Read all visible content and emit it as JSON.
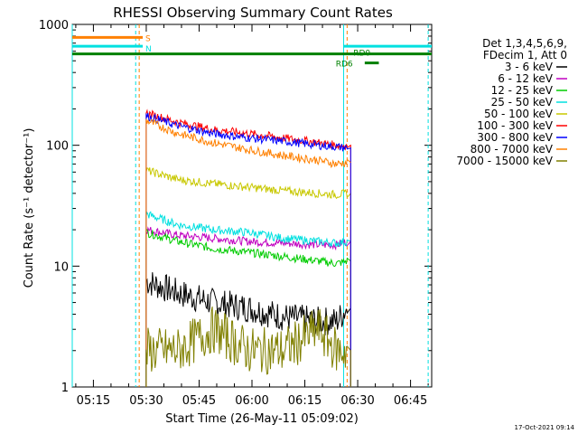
{
  "chart_data": {
    "type": "line",
    "title": "RHESSI Observing Summary Count Rates",
    "xlabel": "Start Time (26-May-11 05:09:02)",
    "ylabel": "Count Rate (s⁻¹ detector⁻¹)",
    "yscale": "log",
    "ylim": [
      1,
      1000
    ],
    "xlim_minutes_after_0509": [
      0,
      102
    ],
    "x_ticks": [
      "05:15",
      "05:30",
      "05:45",
      "06:00",
      "06:15",
      "06:30",
      "06:45"
    ],
    "y_ticks": [
      "1",
      "10",
      "100",
      "1000"
    ],
    "grid": false,
    "legend_position": "right",
    "legend_header": [
      "Det 1,3,4,5,6,9,",
      "FDecim 1, Att 0"
    ],
    "series": [
      {
        "name": "3 - 6 keV",
        "color": "#000000",
        "x": [
          21,
          30,
          40,
          50,
          60,
          70,
          75,
          78,
          79
        ],
        "y": [
          7.5,
          6.0,
          5.0,
          4.5,
          3.8,
          3.5,
          3.5,
          4.5,
          1
        ]
      },
      {
        "name": "6 - 12 keV",
        "color": "#c000c0",
        "x": [
          21,
          30,
          40,
          50,
          60,
          70,
          75,
          78,
          79
        ],
        "y": [
          20,
          18,
          17,
          16,
          15.5,
          15,
          15,
          16,
          1
        ]
      },
      {
        "name": "12 - 25 keV",
        "color": "#00cc00",
        "x": [
          21,
          30,
          40,
          50,
          60,
          70,
          75,
          78,
          79
        ],
        "y": [
          19,
          16,
          14,
          13,
          12,
          11,
          10.5,
          11,
          1
        ]
      },
      {
        "name": "25 - 50 keV",
        "color": "#00e0e0",
        "x": [
          21,
          30,
          40,
          50,
          60,
          70,
          75,
          78,
          79
        ],
        "y": [
          27,
          22,
          20,
          19,
          17,
          16,
          15.5,
          16,
          1
        ]
      },
      {
        "name": "50 - 100 keV",
        "color": "#c8c800",
        "x": [
          21,
          30,
          40,
          50,
          60,
          70,
          75,
          78,
          79
        ],
        "y": [
          62,
          52,
          48,
          45,
          42,
          40,
          39,
          40,
          1
        ]
      },
      {
        "name": "100 - 300 keV",
        "color": "#ff0000",
        "x": [
          21,
          30,
          40,
          50,
          60,
          70,
          75,
          78,
          79
        ],
        "y": [
          185,
          155,
          135,
          125,
          115,
          105,
          100,
          100,
          1
        ]
      },
      {
        "name": "300 - 800 keV",
        "color": "#0000ff",
        "x": [
          21,
          30,
          40,
          50,
          60,
          70,
          75,
          78,
          79
        ],
        "y": [
          175,
          145,
          125,
          115,
          108,
          100,
          97,
          95,
          1
        ]
      },
      {
        "name": "800 - 7000 keV",
        "color": "#ff8000",
        "x": [
          21,
          30,
          40,
          50,
          60,
          70,
          75,
          78,
          79
        ],
        "y": [
          160,
          125,
          105,
          92,
          82,
          75,
          70,
          72,
          72
        ]
      },
      {
        "name": "7000 - 15000 keV",
        "color": "#808000",
        "x": [
          21,
          30,
          40,
          50,
          60,
          70,
          75,
          78,
          79
        ],
        "y": [
          2,
          2,
          3,
          2,
          2,
          3,
          2,
          2,
          1
        ]
      }
    ],
    "annotations": [
      {
        "label": "S",
        "color": "#ff8000",
        "x": 20,
        "y": 780
      },
      {
        "label": "N",
        "color": "#00e0e0",
        "x": 20,
        "y": 640
      },
      {
        "label": "RD0",
        "color": "#008000",
        "x": 79,
        "y": 590
      },
      {
        "label": "RD6",
        "color": "#008000",
        "x": 74,
        "y": 480
      }
    ],
    "bars": [
      {
        "name": "S",
        "color": "#ff8000",
        "from_min": 0,
        "to_min": 20,
        "level": 780
      },
      {
        "name": "N",
        "color": "#00e0e0",
        "from_min": 0,
        "to_min": 20,
        "level": 660
      },
      {
        "name": "N",
        "color": "#00e0e0",
        "from_min": 77,
        "to_min": 102,
        "level": 660
      },
      {
        "name": "RD0",
        "color": "#008000",
        "from_min": 0,
        "to_min": 102,
        "level": 570
      },
      {
        "name": "RD6",
        "color": "#008000",
        "from_min": 83,
        "to_min": 87,
        "level": 480
      }
    ],
    "vertical_markers": [
      {
        "color": "#00e0e0",
        "style": "solid",
        "x_min": 0
      },
      {
        "color": "#00e0e0",
        "style": "dashed",
        "x_min": 18
      },
      {
        "color": "#ff8000",
        "style": "dashed",
        "x_min": 19
      },
      {
        "color": "#00e0e0",
        "style": "solid",
        "x_min": 77
      },
      {
        "color": "#ff8000",
        "style": "dashed",
        "x_min": 78
      },
      {
        "color": "#00e0e0",
        "style": "dashed",
        "x_min": 101
      }
    ],
    "footer_timestamp": "17-Oct-2021 09:14"
  }
}
